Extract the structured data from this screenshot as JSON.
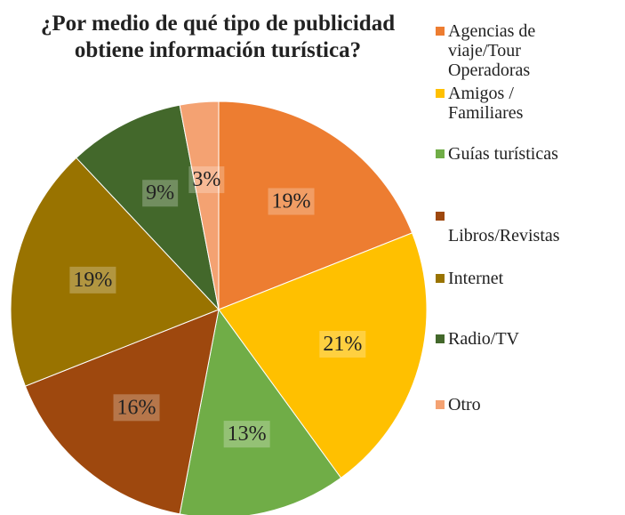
{
  "chart_data": {
    "type": "pie",
    "title": "¿Por medio de qué tipo de publicidad obtiene información turística?",
    "categories": [
      "Agencias de viaje/Tour Operadoras",
      "Amigos / Familiares",
      "Guías turísticas",
      " Libros/Revistas",
      "Internet",
      "Radio/TV",
      "Otro"
    ],
    "values": [
      19,
      21,
      13,
      16,
      19,
      9,
      3
    ],
    "value_labels": [
      "19%",
      "21%",
      "13%",
      "16%",
      "19%",
      "9%",
      "3%"
    ],
    "colors": [
      "#ED7D31",
      "#FFC000",
      "#70AD47",
      "#9E480E",
      "#997300",
      "#43682B",
      "#F4A272"
    ],
    "legend": "right"
  }
}
